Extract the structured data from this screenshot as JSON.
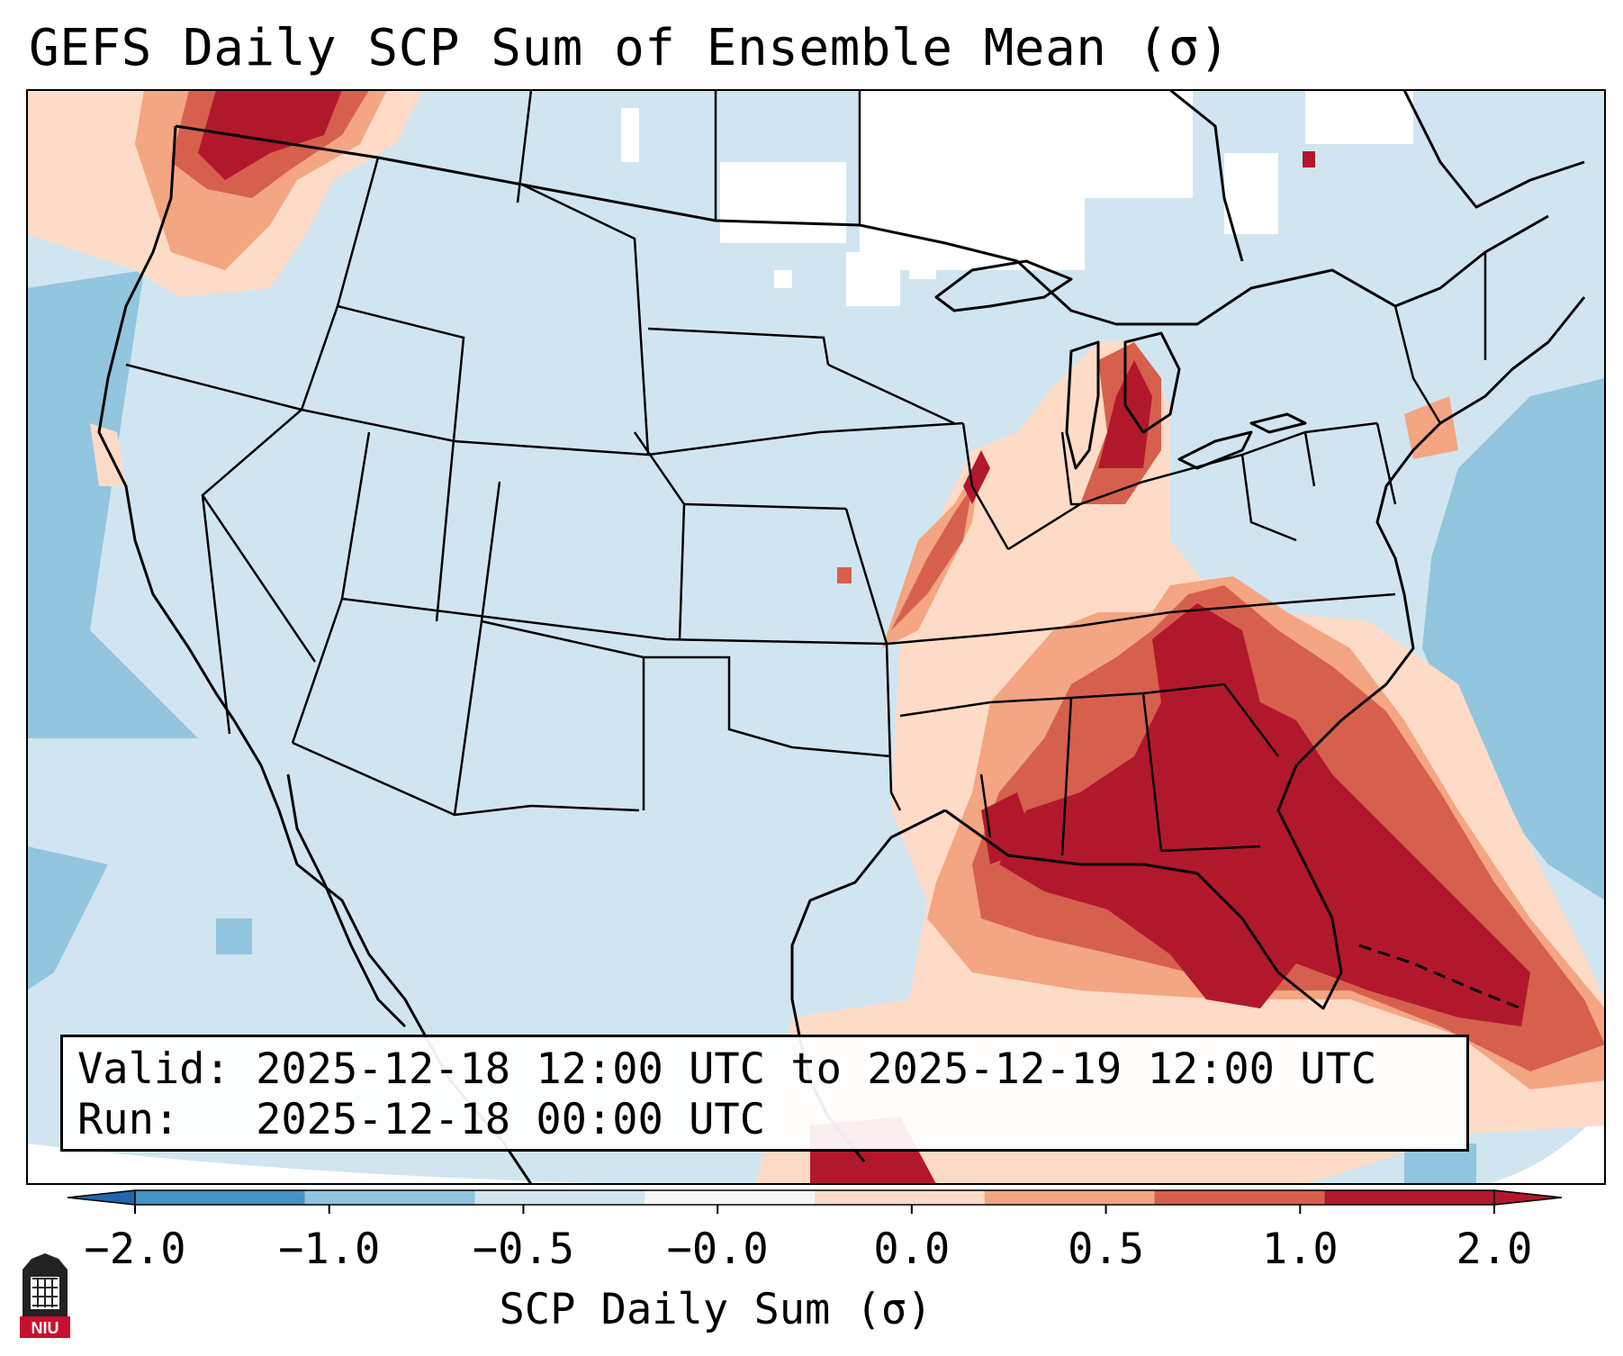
{
  "title": "GEFS Daily SCP Sum of Ensemble Mean (σ)",
  "valid_line": "Valid: 2025-12-18 12:00 UTC to 2025-12-19 12:00 UTC",
  "run_line": "Run:   2025-12-18 00:00 UTC",
  "colorbar": {
    "label": "SCP Daily Sum (σ)",
    "ticks": [
      "−2.0",
      "−1.0",
      "−0.5",
      "−0.0",
      "0.0",
      "0.5",
      "1.0",
      "2.0"
    ],
    "colors": [
      "#4393c3",
      "#92c5de",
      "#d1e5f0",
      "#f7f7f7",
      "#fddbc7",
      "#f4a582",
      "#d6604d",
      "#b2182b"
    ],
    "extend": "both"
  },
  "logo": {
    "text": "NIU",
    "icon": "niu-logo-icon"
  },
  "map_colors": {
    "background": "#d1e5f0",
    "strong_negative": "#92c5de",
    "neutral": "#ffffff",
    "weak_positive": "#fddbc7",
    "moderate_positive": "#f4a582",
    "strong_positive": "#d6604d",
    "very_strong_positive": "#b2182b"
  }
}
